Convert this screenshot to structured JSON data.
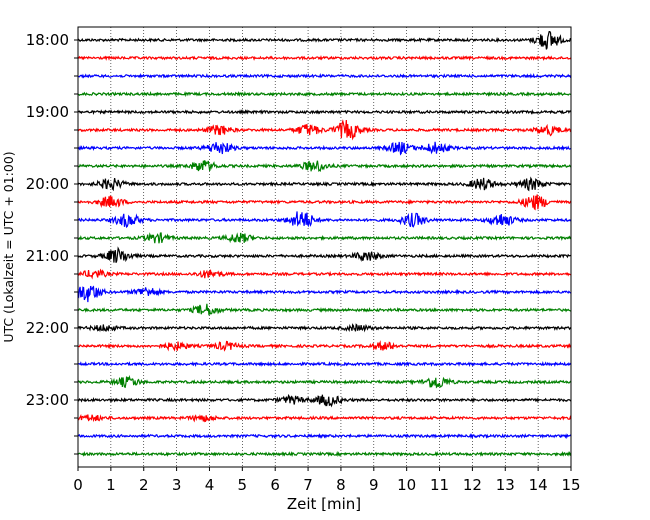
{
  "chart_data": {
    "type": "line",
    "title": "",
    "xlabel": "Zeit  [min]",
    "ylabel": "UTC (Lokalzeit = UTC + 01:00)",
    "xlim": [
      0,
      15
    ],
    "x_ticks": [
      "0",
      "1",
      "2",
      "3",
      "4",
      "5",
      "6",
      "7",
      "8",
      "9",
      "10",
      "11",
      "12",
      "13",
      "14",
      "15"
    ],
    "y_tick_labels": [
      "18:00",
      "19:00",
      "20:00",
      "21:00",
      "22:00",
      "23:00"
    ],
    "row_start_times": [
      "18:00",
      "18:15",
      "18:30",
      "18:45",
      "19:00",
      "19:15",
      "19:30",
      "19:45",
      "20:00",
      "20:15",
      "20:30",
      "20:45",
      "21:00",
      "21:15",
      "21:30",
      "21:45",
      "22:00",
      "22:15",
      "22:30",
      "22:45",
      "23:00",
      "23:15",
      "23:30",
      "23:45"
    ],
    "row_colors": [
      "#000000",
      "#ff0000",
      "#0000ff",
      "#008000"
    ],
    "grid": "vertical dotted lines at each minute",
    "events": [
      {
        "row": 0,
        "minute": 14.3,
        "amplitude": 1.0
      },
      {
        "row": 5,
        "minute": 8.2,
        "amplitude": 1.0
      },
      {
        "row": 5,
        "minute": 7.0,
        "amplitude": 0.6
      },
      {
        "row": 5,
        "minute": 4.3,
        "amplitude": 0.5
      },
      {
        "row": 5,
        "minute": 14.3,
        "amplitude": 0.5
      },
      {
        "row": 6,
        "minute": 4.3,
        "amplitude": 0.7
      },
      {
        "row": 6,
        "minute": 9.8,
        "amplitude": 0.6
      },
      {
        "row": 6,
        "minute": 10.9,
        "amplitude": 0.6
      },
      {
        "row": 7,
        "minute": 3.8,
        "amplitude": 0.6
      },
      {
        "row": 7,
        "minute": 7.2,
        "amplitude": 0.6
      },
      {
        "row": 8,
        "minute": 1.0,
        "amplitude": 0.6
      },
      {
        "row": 8,
        "minute": 12.3,
        "amplitude": 0.6
      },
      {
        "row": 8,
        "minute": 13.8,
        "amplitude": 0.6
      },
      {
        "row": 9,
        "minute": 1.0,
        "amplitude": 0.6
      },
      {
        "row": 9,
        "minute": 13.9,
        "amplitude": 0.8
      },
      {
        "row": 10,
        "minute": 1.5,
        "amplitude": 0.7
      },
      {
        "row": 10,
        "minute": 6.8,
        "amplitude": 1.0
      },
      {
        "row": 10,
        "minute": 10.2,
        "amplitude": 0.7
      },
      {
        "row": 10,
        "minute": 12.9,
        "amplitude": 0.7
      },
      {
        "row": 11,
        "minute": 2.4,
        "amplitude": 0.5
      },
      {
        "row": 11,
        "minute": 4.9,
        "amplitude": 0.5
      },
      {
        "row": 12,
        "minute": 1.2,
        "amplitude": 0.8
      },
      {
        "row": 12,
        "minute": 8.8,
        "amplitude": 0.5
      },
      {
        "row": 13,
        "minute": 0.5,
        "amplitude": 0.4
      },
      {
        "row": 13,
        "minute": 4.0,
        "amplitude": 0.4
      },
      {
        "row": 14,
        "minute": 0.3,
        "amplitude": 1.0
      },
      {
        "row": 14,
        "minute": 2.1,
        "amplitude": 0.5
      },
      {
        "row": 15,
        "minute": 3.9,
        "amplitude": 0.6
      },
      {
        "row": 16,
        "minute": 0.8,
        "amplitude": 0.3
      },
      {
        "row": 16,
        "minute": 8.5,
        "amplitude": 0.3
      },
      {
        "row": 17,
        "minute": 3.0,
        "amplitude": 0.4
      },
      {
        "row": 17,
        "minute": 4.5,
        "amplitude": 0.4
      },
      {
        "row": 17,
        "minute": 9.3,
        "amplitude": 0.4
      },
      {
        "row": 19,
        "minute": 1.5,
        "amplitude": 0.5
      },
      {
        "row": 19,
        "minute": 10.9,
        "amplitude": 0.7
      },
      {
        "row": 20,
        "minute": 6.5,
        "amplitude": 0.4
      },
      {
        "row": 20,
        "minute": 7.6,
        "amplitude": 0.6
      },
      {
        "row": 21,
        "minute": 0.4,
        "amplitude": 0.3
      },
      {
        "row": 21,
        "minute": 3.8,
        "amplitude": 0.3
      }
    ]
  }
}
